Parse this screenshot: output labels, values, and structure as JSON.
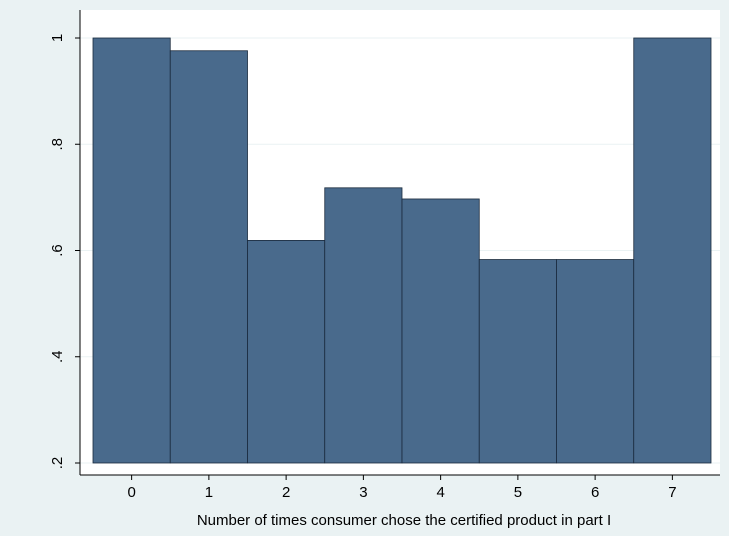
{
  "chart_data": {
    "type": "bar",
    "title": "",
    "xlabel": "Number of times consumer chose the certified product in part I",
    "ylabel": "",
    "categories": [
      "0",
      "1",
      "2",
      "3",
      "4",
      "5",
      "6",
      "7"
    ],
    "values": [
      1.0,
      0.976,
      0.619,
      0.718,
      0.697,
      0.583,
      0.583,
      1.0
    ],
    "ylim": [
      0.2,
      1.0
    ],
    "yticks": [
      0.2,
      0.4,
      0.6,
      0.8,
      1.0
    ],
    "ytick_labels": [
      ".2",
      ".4",
      ".6",
      ".8",
      "1"
    ],
    "grid": true,
    "colors": {
      "background": "#eaf2f3",
      "plot_area": "#ffffff",
      "bar_fill": "#496a8c",
      "bar_stroke": "#1a2a3c",
      "grid": "#eaf2f3"
    }
  }
}
